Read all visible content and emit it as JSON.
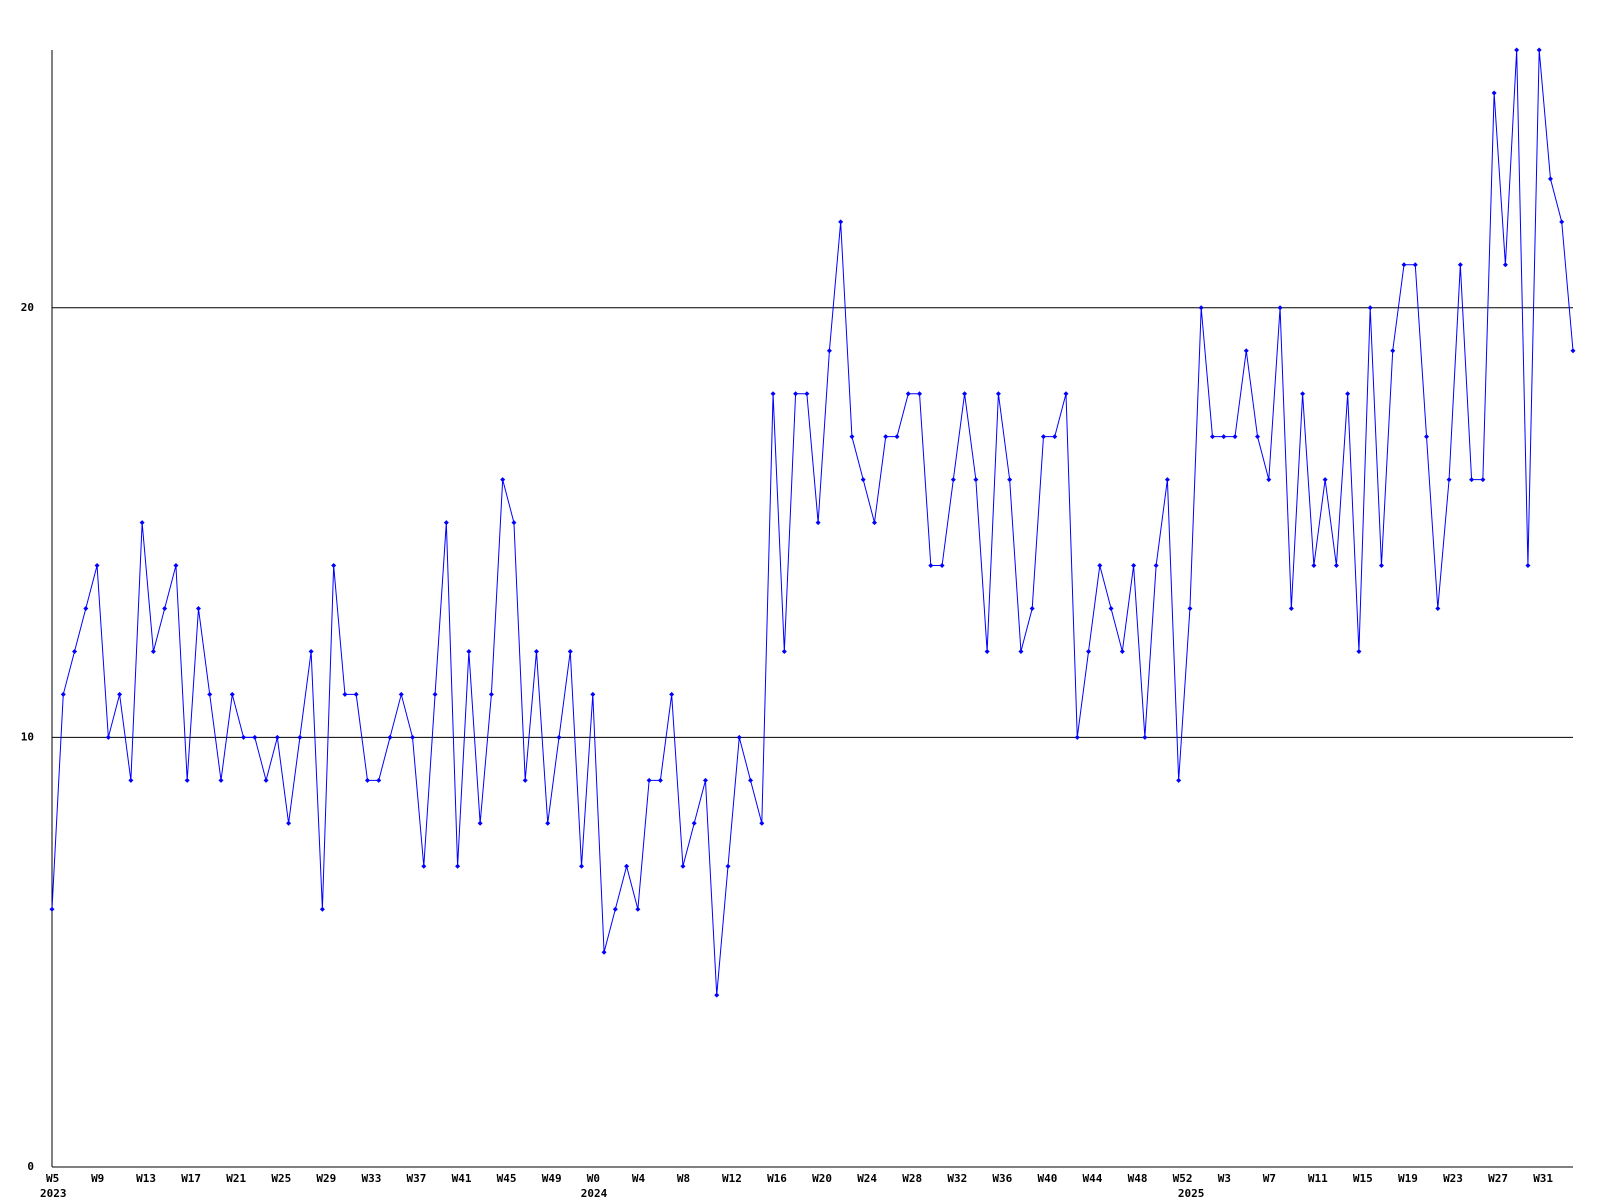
{
  "chart_data": {
    "type": "line",
    "categories": [
      "W5",
      null,
      null,
      null,
      "W9",
      null,
      null,
      null,
      "W13",
      null,
      null,
      null,
      "W17",
      null,
      null,
      null,
      "W21",
      null,
      null,
      null,
      "W25",
      null,
      null,
      null,
      "W29",
      null,
      null,
      null,
      "W33",
      null,
      null,
      null,
      "W37",
      null,
      null,
      null,
      "W41",
      null,
      null,
      null,
      "W45",
      null,
      null,
      null,
      "W49",
      null,
      null,
      null,
      "W0",
      null,
      null,
      null,
      "W4",
      null,
      null,
      null,
      "W8",
      null,
      null,
      null,
      "W12",
      null,
      null,
      null,
      "W16",
      null,
      null,
      null,
      "W20",
      null,
      null,
      null,
      "W24",
      null,
      null,
      null,
      "W28",
      null,
      null,
      null,
      "W32",
      null,
      null,
      null,
      "W36",
      null,
      null,
      null,
      "W40",
      null,
      null,
      null,
      "W44",
      null,
      null,
      null,
      "W48",
      null,
      null,
      null,
      "W52",
      null,
      null,
      null,
      "W3",
      null,
      null,
      null,
      "W7",
      null,
      null,
      null,
      "W11",
      null,
      null,
      null,
      "W15",
      null,
      null,
      null,
      "W19",
      null,
      null,
      null,
      "W23",
      null,
      null,
      null,
      "W27",
      null,
      null,
      null,
      "W31",
      null,
      null,
      null
    ],
    "x_group_labels": [
      "2023",
      null,
      null,
      null,
      null,
      null,
      null,
      null,
      null,
      null,
      null,
      null,
      null,
      null,
      null,
      null,
      null,
      null,
      null,
      null,
      null,
      null,
      null,
      null,
      null,
      null,
      null,
      null,
      null,
      null,
      null,
      null,
      null,
      null,
      null,
      null,
      null,
      null,
      null,
      null,
      null,
      null,
      null,
      null,
      null,
      null,
      null,
      null,
      "2024",
      null,
      null,
      null,
      null,
      null,
      null,
      null,
      null,
      null,
      null,
      null,
      null,
      null,
      null,
      null,
      null,
      null,
      null,
      null,
      null,
      null,
      null,
      null,
      null,
      null,
      null,
      null,
      null,
      null,
      null,
      null,
      null,
      null,
      null,
      null,
      null,
      null,
      null,
      null,
      null,
      null,
      null,
      null,
      null,
      null,
      null,
      null,
      null,
      null,
      null,
      null,
      null,
      "2025",
      null,
      null,
      null,
      null,
      null,
      null,
      null,
      null,
      null,
      null,
      null,
      null,
      null,
      null,
      null,
      null,
      null,
      null,
      null,
      null,
      null,
      null,
      null,
      null,
      null,
      null,
      null,
      null,
      null,
      null,
      null,
      null,
      null,
      null
    ],
    "series": [
      {
        "color": "#0000ff",
        "values": [
          6,
          11,
          12,
          13,
          14,
          10,
          11,
          9,
          15,
          12,
          13,
          14,
          9,
          13,
          11,
          9,
          11,
          10,
          10,
          9,
          10,
          8,
          10,
          12,
          6,
          14,
          11,
          11,
          9,
          9,
          10,
          11,
          10,
          7,
          11,
          15,
          7,
          12,
          8,
          11,
          16,
          15,
          9,
          12,
          8,
          10,
          12,
          7,
          11,
          5,
          6,
          7,
          6,
          9,
          9,
          11,
          7,
          8,
          9,
          4,
          7,
          10,
          9,
          8,
          18,
          12,
          18,
          18,
          15,
          19,
          22,
          17,
          16,
          15,
          17,
          17,
          18,
          18,
          14,
          14,
          16,
          18,
          16,
          12,
          18,
          16,
          12,
          13,
          17,
          17,
          18,
          10,
          12,
          14,
          13,
          12,
          14,
          10,
          14,
          16,
          9,
          13,
          20,
          17,
          17,
          17,
          19,
          17,
          16,
          20,
          13,
          18,
          14,
          16,
          14,
          18,
          12,
          20,
          14,
          19,
          21,
          21,
          17,
          13,
          16,
          21,
          16,
          16,
          25,
          21,
          26,
          14,
          26,
          23,
          22,
          19
        ]
      }
    ],
    "ylim": [
      0,
      26
    ],
    "yticks": [
      0,
      10,
      20
    ],
    "grid": true
  }
}
